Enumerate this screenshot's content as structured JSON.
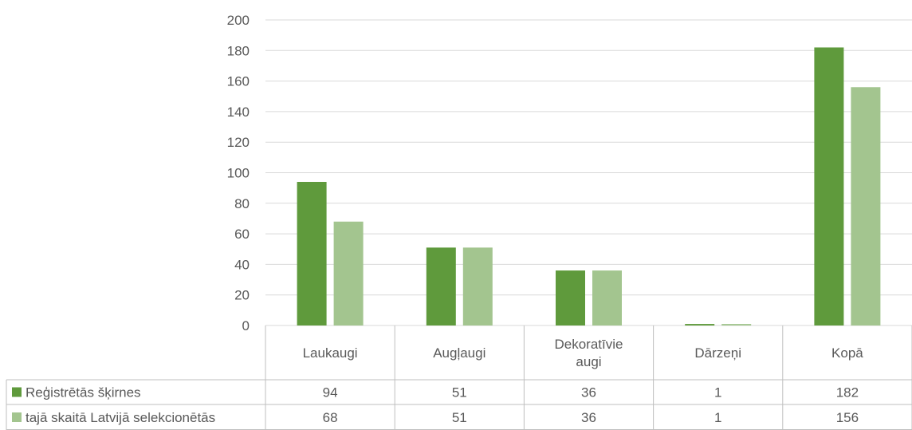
{
  "chart_data": {
    "type": "bar",
    "categories": [
      [
        "Laukaugi"
      ],
      [
        "Augļaugi"
      ],
      [
        "Dekoratīvie",
        "augi"
      ],
      [
        "Dārzeņi"
      ],
      [
        "Kopā"
      ]
    ],
    "series": [
      {
        "name": "Reģistrētās šķirnes",
        "values": [
          94,
          51,
          36,
          1,
          182
        ],
        "color": "#5f9a3c"
      },
      {
        "name": "tajā skaitā Latvijā selekcionētās",
        "values": [
          68,
          51,
          36,
          1,
          156
        ],
        "color": "#a3c58f"
      }
    ],
    "ylim": [
      0,
      200
    ],
    "yticks": [
      0,
      20,
      40,
      60,
      80,
      100,
      120,
      140,
      160,
      180,
      200
    ],
    "grid": true,
    "legend": "data-table"
  }
}
